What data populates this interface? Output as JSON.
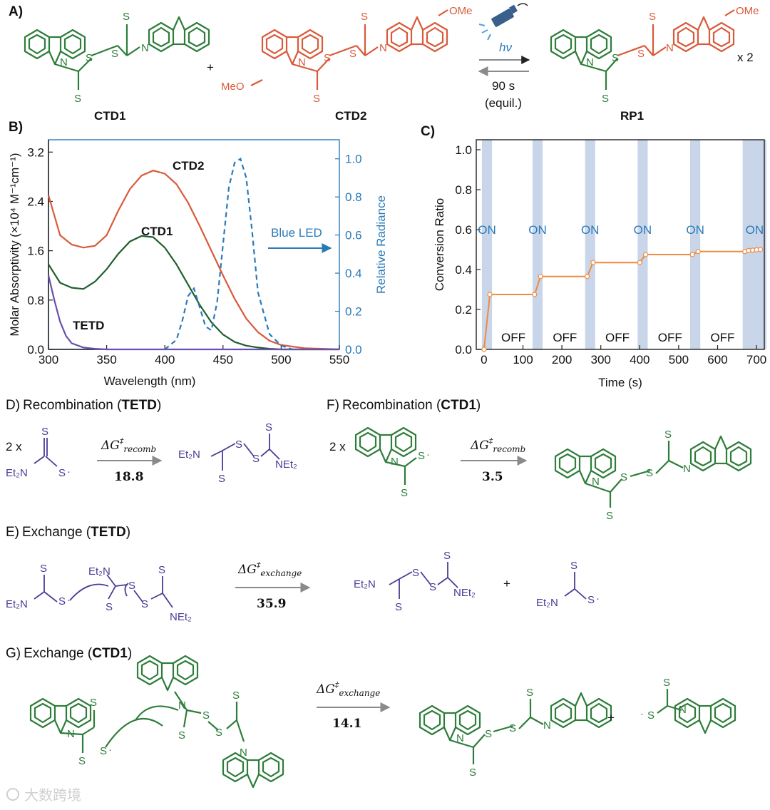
{
  "panelA": {
    "label": "A)",
    "cmp1": "CTD1",
    "cmp2": "CTD2",
    "prod": "RP1",
    "plus": "+",
    "x2": "x 2",
    "hv": "hν",
    "time": "90 s",
    "equil": "(equil.)",
    "ome": "OMe",
    "meo": "MeO"
  },
  "panelB": {
    "label": "B)",
    "xlabel": "Wavelength (nm)",
    "ylabel_left": "Molar Absorptivity (×10⁴ M⁻¹cm⁻¹)",
    "ylabel_right": "Relative Radiance",
    "blue_led": "Blue LED",
    "series_labels": [
      "CTD2",
      "CTD1",
      "TETD"
    ],
    "x_ticks": [
      "300",
      "350",
      "400",
      "450",
      "500",
      "550"
    ],
    "y_left_ticks": [
      "0.0",
      "0.8",
      "1.6",
      "2.4",
      "3.2"
    ],
    "y_right_ticks": [
      "0.0",
      "0.2",
      "0.4",
      "0.6",
      "0.8",
      "1.0"
    ]
  },
  "panelC": {
    "label": "C)",
    "xlabel": "Time (s)",
    "ylabel": "Conversion Ratio",
    "x_ticks": [
      "0",
      "100",
      "200",
      "300",
      "400",
      "500",
      "600",
      "700"
    ],
    "y_ticks": [
      "0.0",
      "0.2",
      "0.4",
      "0.6",
      "0.8",
      "1.0"
    ],
    "on": "ON",
    "off": "OFF"
  },
  "panelD": {
    "label": "D)",
    "title": "Recombination (",
    "title_bold": "TETD",
    "close": ")",
    "coef": "2  x",
    "dg": "ΔG",
    "sub": "recomb",
    "value": "18.8"
  },
  "panelF": {
    "label": "F)",
    "title": "Recombination (",
    "title_bold": "CTD1",
    "close": ")",
    "coef": "2  x",
    "dg": "ΔG",
    "sub": "recomb",
    "value": "3.5"
  },
  "panelE": {
    "label": "E)",
    "title": "Exchange (",
    "title_bold": "TETD",
    "close": ")",
    "dg": "ΔG",
    "sub": "exchange",
    "value": "35.9",
    "plus": "+"
  },
  "panelG": {
    "label": "G)",
    "title": "Exchange (",
    "title_bold": "CTD1",
    "close": ")",
    "dg": "ΔG",
    "sub": "exchange",
    "value": "14.1",
    "plus": "+"
  },
  "atoms": {
    "S": "S",
    "N": "N",
    "Et2N": "Et₂N",
    "NEt2": "NEt₂",
    "dot": "·"
  },
  "watermark": "大数跨境",
  "colors": {
    "green": "#2e7d3a",
    "red": "#d95a3a",
    "purple": "#4a3a96",
    "blue": "#2a7ab8",
    "orange": "#f08a3c"
  },
  "chart_data": [
    {
      "type": "line",
      "title": "",
      "xlabel": "Wavelength (nm)",
      "ylabel": "Molar Absorptivity (×10⁴ M⁻¹cm⁻¹)",
      "ylabel_right": "Relative Radiance",
      "xlim": [
        300,
        550
      ],
      "ylim": [
        0,
        3.4
      ],
      "ylim_right": [
        0,
        1.1
      ],
      "series": [
        {
          "name": "CTD2",
          "axis": "left",
          "x": [
            300,
            310,
            320,
            330,
            340,
            350,
            360,
            370,
            380,
            390,
            400,
            410,
            420,
            430,
            440,
            450,
            460,
            470,
            480,
            490,
            500,
            520,
            550
          ],
          "y": [
            2.5,
            1.85,
            1.7,
            1.65,
            1.68,
            1.85,
            2.25,
            2.6,
            2.82,
            2.9,
            2.85,
            2.68,
            2.38,
            2.0,
            1.6,
            1.2,
            0.82,
            0.5,
            0.28,
            0.14,
            0.07,
            0.02,
            0.0
          ]
        },
        {
          "name": "CTD1",
          "axis": "left",
          "x": [
            300,
            310,
            320,
            330,
            340,
            350,
            360,
            370,
            380,
            390,
            400,
            410,
            420,
            430,
            440,
            450,
            460,
            470,
            480,
            490,
            500,
            520,
            550
          ],
          "y": [
            1.38,
            1.08,
            1.0,
            0.98,
            1.1,
            1.3,
            1.55,
            1.75,
            1.84,
            1.82,
            1.65,
            1.38,
            1.05,
            0.72,
            0.44,
            0.24,
            0.12,
            0.06,
            0.03,
            0.01,
            0.0,
            0.0,
            0.0
          ]
        },
        {
          "name": "TETD",
          "axis": "left",
          "x": [
            300,
            305,
            310,
            315,
            320,
            330,
            340,
            350,
            360,
            380,
            400,
            450,
            550
          ],
          "y": [
            1.2,
            0.8,
            0.45,
            0.22,
            0.1,
            0.03,
            0.01,
            0.0,
            0.0,
            0.0,
            0.0,
            0.0,
            0.0
          ]
        },
        {
          "name": "Blue LED",
          "axis": "right",
          "x": [
            400,
            410,
            415,
            420,
            425,
            430,
            435,
            440,
            445,
            450,
            455,
            460,
            465,
            470,
            475,
            480,
            490,
            500,
            510
          ],
          "y": [
            0.0,
            0.05,
            0.15,
            0.28,
            0.32,
            0.22,
            0.12,
            0.1,
            0.25,
            0.55,
            0.85,
            0.98,
            1.0,
            0.9,
            0.62,
            0.3,
            0.08,
            0.02,
            0.0
          ]
        }
      ]
    },
    {
      "type": "line",
      "title": "",
      "xlabel": "Time (s)",
      "ylabel": "Conversion Ratio",
      "xlim": [
        -20,
        720
      ],
      "ylim": [
        0,
        1.05
      ],
      "on_intervals": [
        [
          0,
          15
        ],
        [
          130,
          145
        ],
        [
          265,
          280
        ],
        [
          400,
          415
        ],
        [
          535,
          550
        ],
        [
          670,
          720
        ]
      ],
      "series": [
        {
          "name": "",
          "x": [
            0,
            15,
            130,
            145,
            265,
            280,
            400,
            415,
            535,
            550,
            670,
            680,
            690,
            700,
            710
          ],
          "y": [
            0.0,
            0.275,
            0.275,
            0.365,
            0.365,
            0.435,
            0.435,
            0.475,
            0.475,
            0.49,
            0.49,
            0.495,
            0.497,
            0.499,
            0.5
          ]
        }
      ]
    }
  ]
}
